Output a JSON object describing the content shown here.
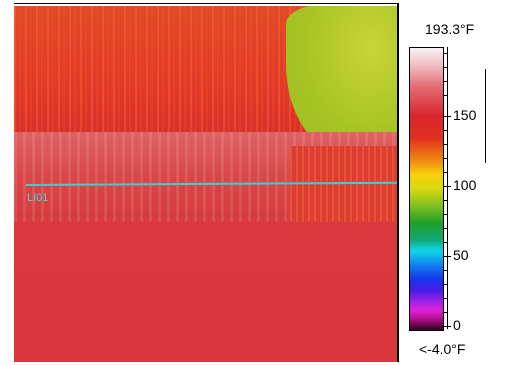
{
  "thermal_view": {
    "line_label": "LI01",
    "line_color": "#3ad0d6"
  },
  "scale": {
    "max_label": "193.3°F",
    "min_label": "<-4.0°F",
    "tick_labels": [
      "150",
      "100",
      "50",
      "0"
    ],
    "palette": "iron-rainbow"
  }
}
